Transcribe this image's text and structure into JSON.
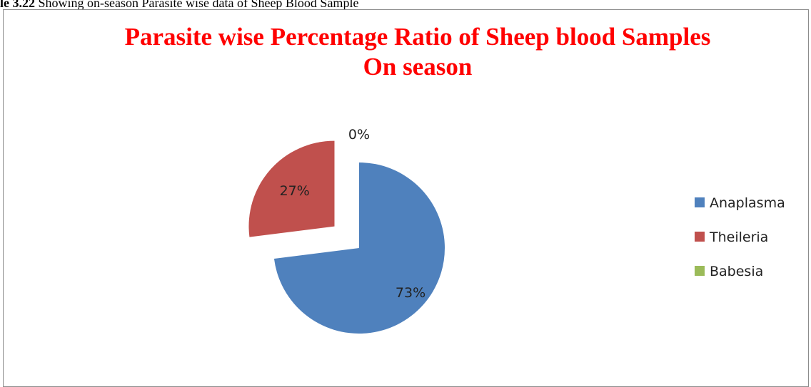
{
  "caption": {
    "number": "le 3.22",
    "text": " Showing on-season Parasite wise data of Sheep Blood Sample"
  },
  "chart_data": {
    "type": "pie",
    "title_line1": "Parasite wise Percentage Ratio of Sheep blood Samples",
    "title_line2": "On season",
    "legend_position": "right",
    "slices": [
      {
        "name": "Anaplasma",
        "value": 73,
        "label": "73%",
        "color": "#4f81bd"
      },
      {
        "name": "Theileria",
        "value": 27,
        "label": "27%",
        "color": "#c0504d"
      },
      {
        "name": "Babesia",
        "value": 0,
        "label": "0%",
        "color": "#9bbb59"
      }
    ]
  }
}
